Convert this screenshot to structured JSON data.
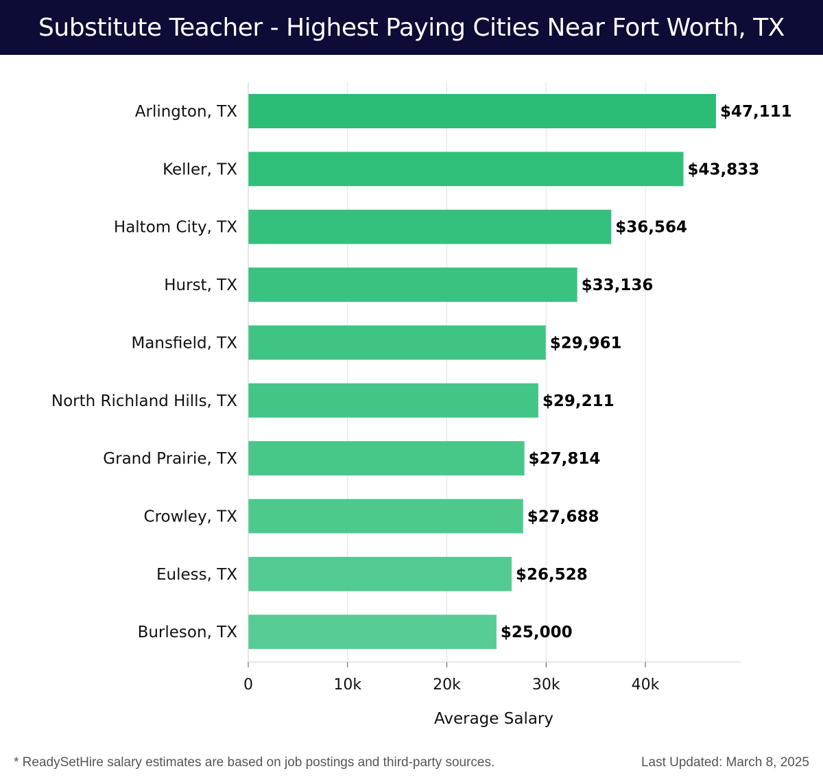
{
  "header": {
    "title": "Substitute Teacher - Highest Paying Cities Near Fort Worth, TX"
  },
  "chart_data": {
    "type": "bar",
    "orientation": "horizontal",
    "categories": [
      "Arlington, TX",
      "Keller, TX",
      "Haltom City, TX",
      "Hurst, TX",
      "Mansfield, TX",
      "North Richland Hills, TX",
      "Grand Prairie, TX",
      "Crowley, TX",
      "Euless, TX",
      "Burleson, TX"
    ],
    "values": [
      47111,
      43833,
      36564,
      33136,
      29961,
      29211,
      27814,
      27688,
      26528,
      25000
    ],
    "value_labels": [
      "$47,111",
      "$43,833",
      "$36,564",
      "$33,136",
      "$29,961",
      "$29,211",
      "$27,814",
      "$27,688",
      "$26,528",
      "$25,000"
    ],
    "xlabel": "Average Salary",
    "ylabel": "",
    "xlim": [
      0,
      49600
    ],
    "x_ticks": [
      0,
      10000,
      20000,
      30000,
      40000
    ],
    "x_tick_labels": [
      "0",
      "10k",
      "20k",
      "30k",
      "40k"
    ],
    "grid": true,
    "bar_color_top": "#2bbd76",
    "bar_color_bottom": "#57cc95"
  },
  "footer": {
    "note": "* ReadySetHire salary estimates are based on job postings and third-party sources.",
    "updated": "Last Updated: March 8, 2025"
  }
}
